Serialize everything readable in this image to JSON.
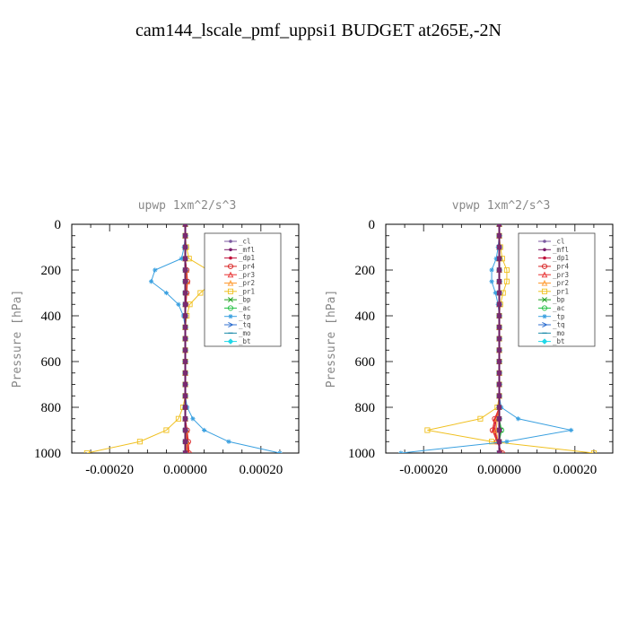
{
  "page": {
    "title": "cam144_lscale_pmf_uppsi1  BUDGET at265E,-2N"
  },
  "chart_data": [
    {
      "type": "line",
      "title": "upwp  1xm^2/s^3",
      "ylabel": "Pressure [hPa]",
      "xlim": [
        -0.0003,
        0.0003
      ],
      "ylim": [
        1000,
        0
      ],
      "xticks": [
        -0.0002,
        0.0,
        0.0002
      ],
      "xtick_labels": [
        "-0.00020",
        "0.00000",
        "0.00020"
      ],
      "yticks": [
        0,
        200,
        400,
        600,
        800,
        1000
      ],
      "ytick_labels": [
        "0",
        "200",
        "400",
        "600",
        "800",
        "1000"
      ],
      "legend": "top-right",
      "y": [
        0,
        50,
        100,
        150,
        200,
        250,
        300,
        350,
        400,
        450,
        500,
        550,
        600,
        650,
        700,
        750,
        800,
        850,
        900,
        950,
        1000
      ],
      "series": [
        {
          "name": "_cl",
          "color": "#7b5aa0",
          "marker": "dot",
          "x": [
            0,
            0,
            0,
            0,
            0,
            0,
            0,
            0,
            0,
            0,
            0,
            0,
            0,
            0,
            0,
            0,
            0,
            0,
            0,
            0,
            0
          ]
        },
        {
          "name": "_mfl",
          "color": "#7a1a6a",
          "marker": "dot",
          "x": [
            0,
            0,
            0,
            0,
            0,
            0,
            0,
            0,
            0,
            0,
            0,
            0,
            0,
            0,
            0,
            0,
            0,
            0,
            0,
            0,
            0
          ]
        },
        {
          "name": "_dp1",
          "color": "#c0103a",
          "marker": "dot",
          "x": [
            0,
            0,
            0,
            0,
            2e-06,
            3e-06,
            2e-06,
            0,
            0,
            0,
            0,
            0,
            0,
            0,
            0,
            0,
            0,
            0,
            3e-06,
            4e-06,
            5e-06
          ]
        },
        {
          "name": "_pr4",
          "color": "#d82020",
          "marker": "circle",
          "x": [
            0,
            0,
            0,
            0,
            4e-06,
            6e-06,
            4e-06,
            2e-06,
            0,
            0,
            0,
            0,
            0,
            0,
            0,
            0,
            0,
            0,
            5e-06,
            8e-06,
            1e-05
          ]
        },
        {
          "name": "_pr3",
          "color": "#e83030",
          "marker": "triangle",
          "x": [
            0,
            0,
            0,
            0,
            3e-06,
            5e-06,
            3e-06,
            1e-06,
            0,
            0,
            0,
            0,
            0,
            0,
            0,
            0,
            0,
            0,
            4e-06,
            6e-06,
            8e-06
          ]
        },
        {
          "name": "_pr2",
          "color": "#ff9a30",
          "marker": "triangle",
          "x": [
            0,
            0,
            0,
            0,
            2e-06,
            3e-06,
            2e-06,
            0,
            0,
            0,
            0,
            0,
            0,
            0,
            0,
            0,
            0,
            0,
            2e-06,
            3e-06,
            4e-06
          ]
        },
        {
          "name": "_pr1",
          "color": "#f0c020",
          "marker": "square",
          "x": [
            0,
            0,
            3e-06,
            1e-05,
            6e-05,
            7.5e-05,
            4e-05,
            1.2e-05,
            4e-06,
            0,
            0,
            0,
            0,
            0,
            0,
            0,
            -6e-06,
            -1.8e-05,
            -5e-05,
            -0.00012,
            -0.00026
          ]
        },
        {
          "name": "_bp",
          "color": "#20a020",
          "marker": "x",
          "x": [
            0,
            0,
            0,
            0,
            0,
            0,
            0,
            0,
            0,
            0,
            0,
            0,
            0,
            0,
            0,
            0,
            0,
            0,
            0,
            0,
            0
          ]
        },
        {
          "name": "_ac",
          "color": "#20c040",
          "marker": "circle",
          "x": [
            0,
            0,
            0,
            0,
            0,
            0,
            0,
            0,
            0,
            0,
            0,
            0,
            0,
            0,
            0,
            0,
            0,
            0,
            0,
            0,
            0
          ]
        },
        {
          "name": "_tp",
          "color": "#3aa0e0",
          "marker": "star",
          "x": [
            0,
            0,
            -3e-06,
            -1e-05,
            -8e-05,
            -9e-05,
            -5e-05,
            -1.8e-05,
            -5e-06,
            0,
            0,
            0,
            0,
            0,
            0,
            0,
            5e-06,
            2e-05,
            5e-05,
            0.000115,
            0.00025
          ]
        },
        {
          "name": "_tq",
          "color": "#3070d0",
          "marker": "arrow",
          "x": [
            0,
            0,
            0,
            0,
            0,
            0,
            0,
            0,
            0,
            0,
            0,
            0,
            0,
            0,
            0,
            0,
            0,
            0,
            0,
            0,
            0
          ]
        },
        {
          "name": "_mo",
          "color": "#1a8aa8",
          "marker": "dash",
          "x": [
            0,
            0,
            0,
            0,
            0,
            0,
            0,
            0,
            0,
            0,
            0,
            0,
            0,
            0,
            0,
            0,
            0,
            0,
            0,
            0,
            0
          ]
        },
        {
          "name": "_bt",
          "color": "#20d8e8",
          "marker": "diamond",
          "x": [
            0,
            0,
            0,
            0,
            0,
            0,
            0,
            0,
            0,
            0,
            0,
            0,
            0,
            0,
            0,
            0,
            0,
            0,
            0,
            0,
            0
          ]
        }
      ]
    },
    {
      "type": "line",
      "title": "vpwp  1xm^2/s^3",
      "ylabel": "Pressure [hPa]",
      "xlim": [
        -0.0003,
        0.0003
      ],
      "ylim": [
        1000,
        0
      ],
      "xticks": [
        -0.0002,
        0.0,
        0.0002
      ],
      "xtick_labels": [
        "-0.00020",
        "0.00000",
        "0.00020"
      ],
      "yticks": [
        0,
        200,
        400,
        600,
        800,
        1000
      ],
      "ytick_labels": [
        "0",
        "200",
        "400",
        "600",
        "800",
        "1000"
      ],
      "legend": "top-right",
      "y": [
        0,
        50,
        100,
        150,
        200,
        250,
        300,
        350,
        400,
        450,
        500,
        550,
        600,
        650,
        700,
        750,
        800,
        850,
        900,
        950,
        1000
      ],
      "series": [
        {
          "name": "_cl",
          "color": "#7b5aa0",
          "marker": "dot",
          "x": [
            0,
            0,
            0,
            0,
            0,
            0,
            0,
            0,
            0,
            0,
            0,
            0,
            0,
            0,
            0,
            0,
            0,
            0,
            0,
            0,
            0
          ]
        },
        {
          "name": "_mfl",
          "color": "#7a1a6a",
          "marker": "dot",
          "x": [
            0,
            0,
            0,
            0,
            0,
            0,
            0,
            0,
            0,
            0,
            0,
            0,
            0,
            0,
            0,
            0,
            0,
            0,
            0,
            0,
            0
          ]
        },
        {
          "name": "_dp1",
          "color": "#c0103a",
          "marker": "dot",
          "x": [
            0,
            0,
            0,
            0,
            0,
            0,
            0,
            0,
            0,
            0,
            0,
            0,
            0,
            0,
            0,
            0,
            0,
            -8e-06,
            -1.2e-05,
            -4e-06,
            5e-06
          ]
        },
        {
          "name": "_pr4",
          "color": "#d82020",
          "marker": "circle",
          "x": [
            0,
            0,
            0,
            0,
            0,
            0,
            0,
            0,
            0,
            0,
            0,
            0,
            0,
            0,
            0,
            0,
            0,
            -1.2e-05,
            -1.8e-05,
            -6e-06,
            8e-06
          ]
        },
        {
          "name": "_pr3",
          "color": "#e83030",
          "marker": "triangle",
          "x": [
            0,
            0,
            0,
            0,
            0,
            0,
            0,
            0,
            0,
            0,
            0,
            0,
            0,
            0,
            0,
            0,
            0,
            -1e-05,
            -1.5e-05,
            -5e-06,
            6e-06
          ]
        },
        {
          "name": "_pr2",
          "color": "#ff9a30",
          "marker": "triangle",
          "x": [
            0,
            0,
            0,
            0,
            0,
            0,
            0,
            0,
            0,
            0,
            0,
            0,
            0,
            0,
            0,
            0,
            0,
            -5e-06,
            -8e-06,
            -3e-06,
            3e-06
          ]
        },
        {
          "name": "_pr1",
          "color": "#f0c020",
          "marker": "square",
          "x": [
            0,
            0,
            3e-06,
            8e-06,
            2e-05,
            2e-05,
            1e-05,
            3e-06,
            0,
            0,
            0,
            0,
            0,
            0,
            0,
            0,
            -5e-06,
            -5e-05,
            -0.00019,
            -2e-05,
            0.00025
          ]
        },
        {
          "name": "_bp",
          "color": "#20a020",
          "marker": "x",
          "x": [
            0,
            0,
            0,
            0,
            0,
            0,
            0,
            0,
            0,
            0,
            0,
            0,
            0,
            0,
            0,
            0,
            0,
            0,
            4e-06,
            0,
            0
          ]
        },
        {
          "name": "_ac",
          "color": "#20c040",
          "marker": "circle",
          "x": [
            0,
            0,
            0,
            0,
            0,
            0,
            0,
            0,
            0,
            0,
            0,
            0,
            0,
            0,
            0,
            0,
            0,
            0,
            6e-06,
            0,
            0
          ]
        },
        {
          "name": "_tp",
          "color": "#3aa0e0",
          "marker": "star",
          "x": [
            0,
            0,
            -3e-06,
            -8e-06,
            -2e-05,
            -2e-05,
            -1e-05,
            -3e-06,
            0,
            0,
            0,
            0,
            0,
            0,
            0,
            0,
            5e-06,
            5e-05,
            0.00019,
            2e-05,
            -0.00026
          ]
        },
        {
          "name": "_tq",
          "color": "#3070d0",
          "marker": "arrow",
          "x": [
            0,
            0,
            0,
            0,
            0,
            0,
            0,
            0,
            0,
            0,
            0,
            0,
            0,
            0,
            0,
            0,
            0,
            0,
            0,
            0,
            0
          ]
        },
        {
          "name": "_mo",
          "color": "#1a8aa8",
          "marker": "dash",
          "x": [
            0,
            0,
            0,
            0,
            0,
            0,
            0,
            0,
            0,
            0,
            0,
            0,
            0,
            0,
            0,
            0,
            0,
            0,
            0,
            0,
            0
          ]
        },
        {
          "name": "_bt",
          "color": "#20d8e8",
          "marker": "diamond",
          "x": [
            0,
            0,
            0,
            0,
            0,
            0,
            0,
            0,
            0,
            0,
            0,
            0,
            0,
            0,
            0,
            0,
            0,
            0,
            0,
            0,
            0
          ]
        }
      ]
    }
  ]
}
